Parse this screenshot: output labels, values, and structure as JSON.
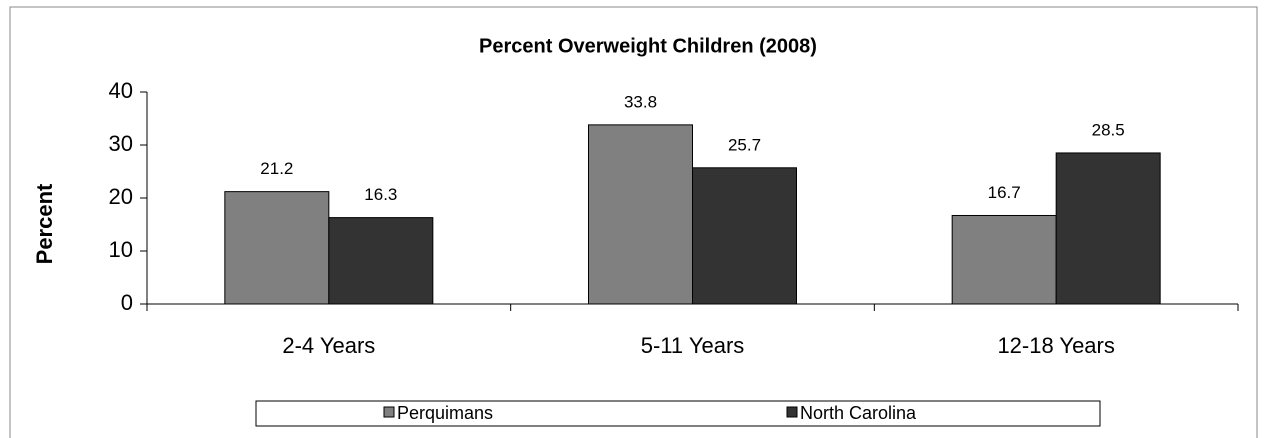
{
  "chart_data": {
    "type": "bar",
    "title": "Percent Overweight Children (2008)",
    "y_label": "Percent",
    "categories": [
      "2-4 Years",
      "5-11 Years",
      "12-18 Years"
    ],
    "series": [
      {
        "name": "Perquimans",
        "color": "#808080",
        "values": [
          21.2,
          33.8,
          16.7
        ]
      },
      {
        "name": "North Carolina",
        "color": "#333333",
        "values": [
          16.3,
          25.7,
          28.5
        ]
      }
    ],
    "ylim": [
      0,
      40
    ],
    "yticks": [
      0,
      10,
      20,
      30,
      40
    ],
    "grid": false,
    "legend": "bottom"
  }
}
